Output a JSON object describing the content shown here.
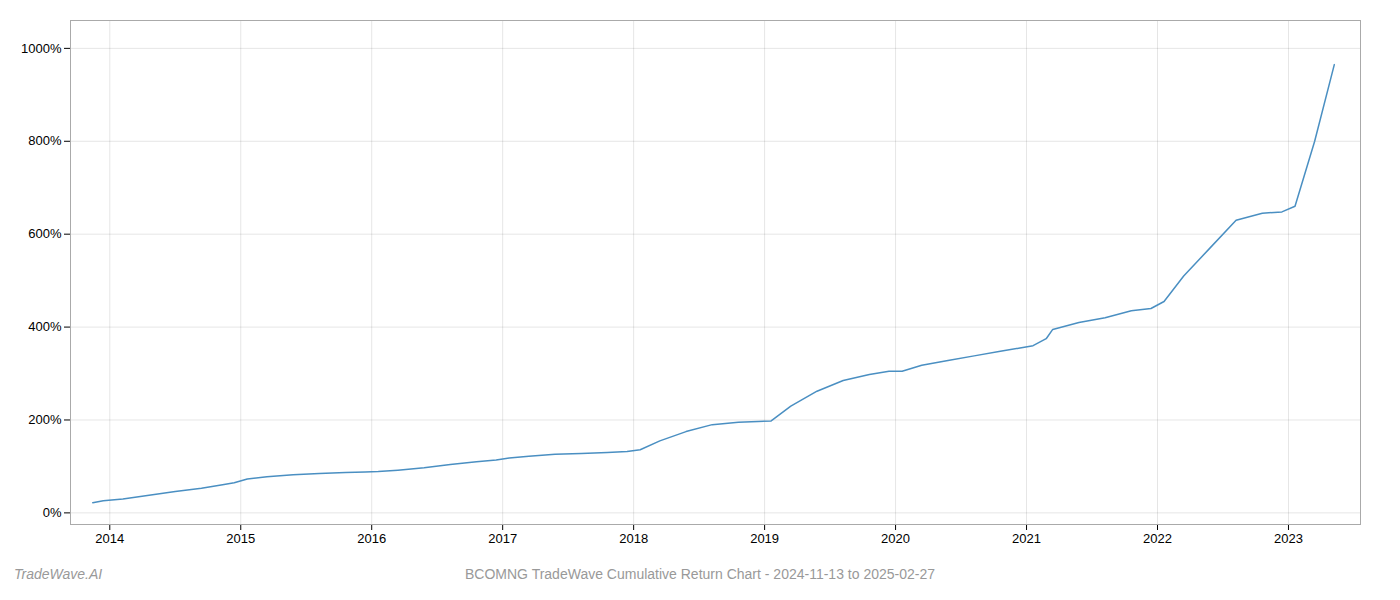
{
  "chart_data": {
    "type": "line",
    "title": "BCOMNG TradeWave Cumulative Return Chart - 2024-11-13 to 2025-02-27",
    "annotations": [
      "TradeWave.AI"
    ],
    "color": "#4a8fc2",
    "grid": true,
    "xlim": [
      2013.7,
      2023.55
    ],
    "ylim": [
      -25,
      1060
    ],
    "xticks": [
      2014,
      2015,
      2016,
      2017,
      2018,
      2019,
      2020,
      2021,
      2022,
      2023
    ],
    "yticks": [
      {
        "value": 0,
        "label": "0%"
      },
      {
        "value": 200,
        "label": "200%"
      },
      {
        "value": 400,
        "label": "400%"
      },
      {
        "value": 600,
        "label": "600%"
      },
      {
        "value": 800,
        "label": "800%"
      },
      {
        "value": 1000,
        "label": "1000%"
      }
    ],
    "x": [
      2013.87,
      2013.95,
      2014.1,
      2014.3,
      2014.5,
      2014.7,
      2014.85,
      2014.95,
      2015.05,
      2015.2,
      2015.4,
      2015.6,
      2015.8,
      2015.95,
      2016.05,
      2016.2,
      2016.4,
      2016.6,
      2016.8,
      2016.95,
      2017.05,
      2017.2,
      2017.4,
      2017.6,
      2017.8,
      2017.95,
      2018.05,
      2018.2,
      2018.4,
      2018.6,
      2018.8,
      2018.95,
      2019.05,
      2019.2,
      2019.4,
      2019.6,
      2019.8,
      2019.95,
      2020.05,
      2020.2,
      2020.4,
      2020.6,
      2020.8,
      2020.95,
      2021.05,
      2021.15,
      2021.2,
      2021.4,
      2021.6,
      2021.8,
      2021.95,
      2022.05,
      2022.2,
      2022.4,
      2022.6,
      2022.8,
      2022.95,
      2023.05,
      2023.2,
      2023.35
    ],
    "values": [
      22,
      26,
      30,
      38,
      46,
      53,
      60,
      65,
      73,
      78,
      82,
      85,
      87,
      88,
      89,
      92,
      97,
      104,
      110,
      114,
      118,
      122,
      126,
      128,
      130,
      132,
      136,
      155,
      175,
      190,
      195,
      197,
      198,
      230,
      262,
      285,
      298,
      305,
      305,
      318,
      328,
      338,
      348,
      355,
      360,
      375,
      395,
      410,
      420,
      435,
      440,
      455,
      510,
      570,
      630,
      645,
      648,
      660,
      800,
      965
    ]
  }
}
